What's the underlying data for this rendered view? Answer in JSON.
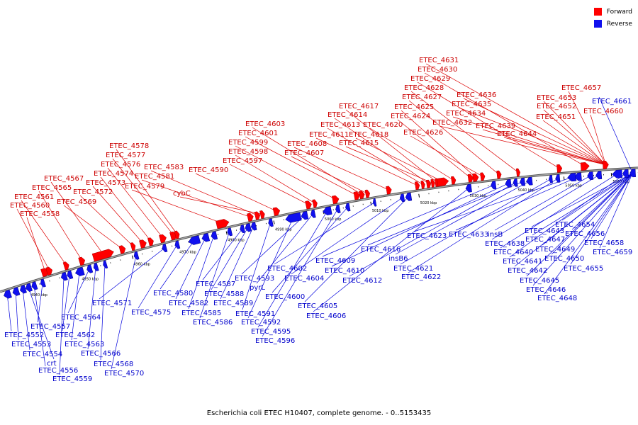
{
  "caption": "Escherichia coli ETEC H10407, complete genome. - 0..5153435",
  "legend": {
    "forward": "Forward",
    "reverse": "Reverse"
  },
  "colors": {
    "forward": "#ff0000",
    "reverse": "#1010ee",
    "backbone": "#808080",
    "forward_label": "#cc0000",
    "reverse_label": "#0000cc"
  },
  "ticks": [
    "4940 kbp",
    "4950 kbp",
    "4960 kbp",
    "4970 kbp",
    "4980 kbp",
    "4990 kbp",
    "5000 kbp",
    "5010 kbp",
    "5020 kbp",
    "5030 kbp",
    "5040 kbp",
    "5050 kbp",
    "5060 kbp"
  ],
  "forward_labels": [
    "ETEC_4558",
    "ETEC_4560",
    "ETEC_4561",
    "ETEC_4565",
    "ETEC_4567",
    "ETEC_4569",
    "ETEC_4572",
    "ETEC_4573",
    "ETEC_4574",
    "ETEC_4576",
    "ETEC_4577",
    "ETEC_4578",
    "ETEC_4579",
    "ETEC_4581",
    "ETEC_4583",
    "cybC",
    "ETEC_4590",
    "ETEC_4597",
    "ETEC_4598",
    "ETEC_4599",
    "ETEC_4601",
    "ETEC_4603",
    "ETEC_4607",
    "ETEC_4608",
    "ETEC_4611",
    "ETEC_4613",
    "ETEC_4614",
    "ETEC_4615",
    "ETEC_4617",
    "ETEC_4618",
    "ETEC_4620",
    "ETEC_4624",
    "ETEC_4625",
    "ETEC_4626",
    "ETEC_4627",
    "ETEC_4628",
    "ETEC_4629",
    "ETEC_4630",
    "ETEC_4631",
    "ETEC_4632",
    "ETEC_4634",
    "ETEC_4635",
    "ETEC_4636",
    "ETEC_4639",
    "ETEC_4644",
    "ETEC_4651",
    "ETEC_4652",
    "ETEC_4653",
    "ETEC_4657",
    "ETEC_4660"
  ],
  "reverse_labels": [
    "ETEC_4552",
    "ETEC_4553",
    "ETEC_4554",
    "crt",
    "ETEC_4556",
    "ETEC_4557",
    "ETEC_4559",
    "ETEC_4562",
    "ETEC_4563",
    "ETEC_4564",
    "ETEC_4566",
    "ETEC_4568",
    "ETEC_4570",
    "ETEC_4571",
    "ETEC_4575",
    "ETEC_4580",
    "ETEC_4582",
    "ETEC_4585",
    "ETEC_4586",
    "ETEC_4587",
    "ETEC_4588",
    "ETEC_4589",
    "ETEC_4591",
    "ETEC_4592",
    "ETEC_4593",
    "pyrL",
    "ETEC_4595",
    "ETEC_4596",
    "ETEC_4600",
    "ETEC_4602",
    "ETEC_4604",
    "ETEC_4605",
    "ETEC_4606",
    "ETEC_4609",
    "ETEC_4610",
    "ETEC_4612",
    "ETEC_4616",
    "insB6",
    "ETEC_4621",
    "ETEC_4622",
    "ETEC_4623",
    "ETEC_4633",
    "insB",
    "ETEC_4638",
    "ETEC_4640",
    "ETEC_4641",
    "ETEC_4642",
    "ETEC_4643",
    "ETEC_4645",
    "ETEC_4646",
    "ETEC_4647",
    "ETEC_4648",
    "ETEC_4649",
    "ETEC_4650",
    "ETEC_4654",
    "ETEC_4655",
    "ETEC_4656",
    "ETEC_4658",
    "ETEC_4659",
    "ETEC_4661"
  ]
}
